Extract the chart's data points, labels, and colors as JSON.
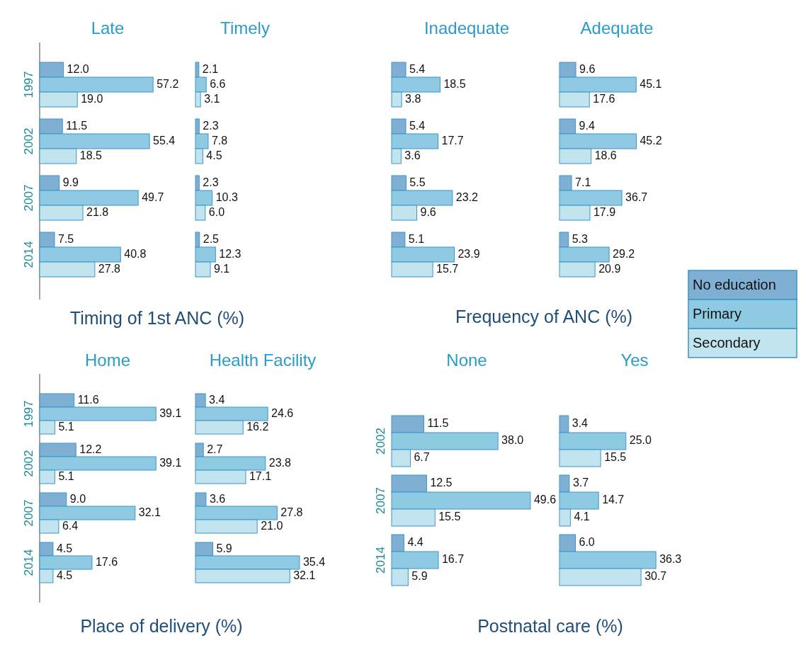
{
  "chart_data": [
    {
      "type": "bar",
      "orientation": "horizontal",
      "title": "Late",
      "xlabel": "Timing of 1st ANC (%)",
      "categories": [
        "1997",
        "2002",
        "2007",
        "2014"
      ],
      "tick_labels": "y",
      "series": [
        {
          "color": "#7fb0d4",
          "values": [
            12.0,
            11.5,
            9.9,
            7.5
          ],
          "value_labels": [
            "12.0",
            "11.5",
            "9.9",
            "7.5"
          ]
        },
        {
          "color": "#8fcae3",
          "values": [
            57.2,
            55.4,
            49.7,
            40.8
          ],
          "value_labels": [
            "57.2",
            "55.4",
            "49.7",
            "40.8"
          ]
        },
        {
          "color": "#c2e4ef",
          "values": [
            19.0,
            18.5,
            21.8,
            27.8
          ],
          "value_labels": [
            "19.0",
            "18.5",
            "21.8",
            "27.8"
          ]
        }
      ]
    },
    {
      "type": "bar",
      "orientation": "horizontal",
      "title": "Timely",
      "categories": [
        "1997",
        "2002",
        "2007",
        "2014"
      ],
      "tick_labels": false,
      "series": [
        {
          "color": "#7fb0d4",
          "values": [
            2.1,
            2.3,
            2.3,
            2.5
          ],
          "value_labels": [
            "2.1",
            "2.3",
            "2.3",
            "2.5"
          ]
        },
        {
          "color": "#8fcae3",
          "values": [
            6.6,
            7.8,
            10.3,
            12.3
          ],
          "value_labels": [
            "6.6",
            "7.8",
            "10.3",
            "12.3"
          ]
        },
        {
          "color": "#c2e4ef",
          "values": [
            3.1,
            4.5,
            6.0,
            9.1
          ],
          "value_labels": [
            "3.1",
            "4.5",
            "6.0",
            "9.1"
          ]
        }
      ]
    },
    {
      "type": "bar",
      "orientation": "horizontal",
      "title": "Inadequate",
      "xlabel": "Frequency of ANC (%)",
      "categories": [
        "1997",
        "2002",
        "2007",
        "2014"
      ],
      "tick_labels": false,
      "series": [
        {
          "color": "#7fb0d4",
          "values": [
            5.4,
            5.4,
            5.5,
            5.1
          ],
          "value_labels": [
            "5.4",
            "5.4",
            "5.5",
            "5.1"
          ]
        },
        {
          "color": "#8fcae3",
          "values": [
            18.5,
            17.7,
            23.2,
            23.9
          ],
          "value_labels": [
            "18.5",
            "17.7",
            "23.2",
            "23.9"
          ]
        },
        {
          "color": "#c2e4ef",
          "values": [
            3.8,
            3.6,
            9.6,
            15.7
          ],
          "value_labels": [
            "3.8",
            "3.6",
            "9.6",
            "15.7"
          ]
        }
      ]
    },
    {
      "type": "bar",
      "orientation": "horizontal",
      "title": "Adequate",
      "categories": [
        "1997",
        "2002",
        "2007",
        "2014"
      ],
      "tick_labels": false,
      "legend": "right",
      "series": [
        {
          "name": "No education",
          "color": "#7fb0d4",
          "values": [
            9.6,
            9.4,
            7.1,
            5.3
          ],
          "value_labels": [
            "9.6",
            "9.4",
            "7.1",
            "5.3"
          ]
        },
        {
          "name": "Primary",
          "color": "#8fcae3",
          "values": [
            45.1,
            45.2,
            36.7,
            29.2
          ],
          "value_labels": [
            "45.1",
            "45.2",
            "36.7",
            "29.2"
          ]
        },
        {
          "name": "Secondary",
          "color": "#c2e4ef",
          "values": [
            17.6,
            18.6,
            17.9,
            20.9
          ],
          "value_labels": [
            "17.6",
            "18.6",
            "17.9",
            "20.9"
          ]
        }
      ]
    },
    {
      "type": "bar",
      "orientation": "horizontal",
      "title": "Home",
      "xlabel": "Place of delivery (%)",
      "categories": [
        "1997",
        "2002",
        "2007",
        "2014"
      ],
      "tick_labels": "y",
      "series": [
        {
          "color": "#7fb0d4",
          "values": [
            11.6,
            12.2,
            9.0,
            4.5
          ],
          "value_labels": [
            "11.6",
            "12.2",
            "9.0",
            "4.5"
          ]
        },
        {
          "color": "#8fcae3",
          "values": [
            39.1,
            39.1,
            32.1,
            17.6
          ],
          "value_labels": [
            "39.1",
            "39.1",
            "32.1",
            "17.6"
          ]
        },
        {
          "color": "#c2e4ef",
          "values": [
            5.1,
            5.1,
            6.4,
            4.5
          ],
          "value_labels": [
            "5.1",
            "5.1",
            "6.4",
            "4.5"
          ]
        }
      ]
    },
    {
      "type": "bar",
      "orientation": "horizontal",
      "title": "Health Facility",
      "categories": [
        "1997",
        "2002",
        "2007",
        "2014"
      ],
      "tick_labels": false,
      "series": [
        {
          "color": "#7fb0d4",
          "values": [
            3.4,
            2.7,
            3.6,
            5.9
          ],
          "value_labels": [
            "3.4",
            "2.7",
            "3.6",
            "5.9"
          ]
        },
        {
          "color": "#8fcae3",
          "values": [
            24.6,
            23.8,
            27.8,
            35.4
          ],
          "value_labels": [
            "24.6",
            "23.8",
            "27.8",
            "35.4"
          ]
        },
        {
          "color": "#c2e4ef",
          "values": [
            16.2,
            17.1,
            21.0,
            32.1
          ],
          "value_labels": [
            "16.2",
            "17.1",
            "21.0",
            "32.1"
          ]
        }
      ]
    },
    {
      "type": "bar",
      "orientation": "horizontal",
      "title": "None",
      "xlabel": "Postnatal care (%)",
      "categories": [
        "2002",
        "2007",
        "2014"
      ],
      "tick_labels": "y",
      "series": [
        {
          "color": "#7fb0d4",
          "values": [
            11.5,
            12.5,
            4.4
          ],
          "value_labels": [
            "11.5",
            "12.5",
            "4.4"
          ]
        },
        {
          "color": "#8fcae3",
          "values": [
            38.0,
            49.6,
            16.7
          ],
          "value_labels": [
            "38.0",
            "49.6",
            "16.7"
          ]
        },
        {
          "color": "#c2e4ef",
          "values": [
            6.7,
            15.5,
            5.9
          ],
          "value_labels": [
            "6.7",
            "15.5",
            "5.9"
          ]
        }
      ]
    },
    {
      "type": "bar",
      "orientation": "horizontal",
      "title": "Yes",
      "categories": [
        "2002",
        "2007",
        "2014"
      ],
      "tick_labels": false,
      "series": [
        {
          "color": "#7fb0d4",
          "values": [
            3.4,
            3.7,
            6.0
          ],
          "value_labels": [
            "3.4",
            "3.7",
            "6.0"
          ]
        },
        {
          "color": "#8fcae3",
          "values": [
            25.0,
            14.7,
            36.3
          ],
          "value_labels": [
            "25.0",
            "14.7",
            "36.3"
          ]
        },
        {
          "color": "#c2e4ef",
          "values": [
            15.5,
            4.1,
            30.7
          ],
          "value_labels": [
            "15.5",
            "4.1",
            "30.7"
          ]
        }
      ]
    }
  ]
}
